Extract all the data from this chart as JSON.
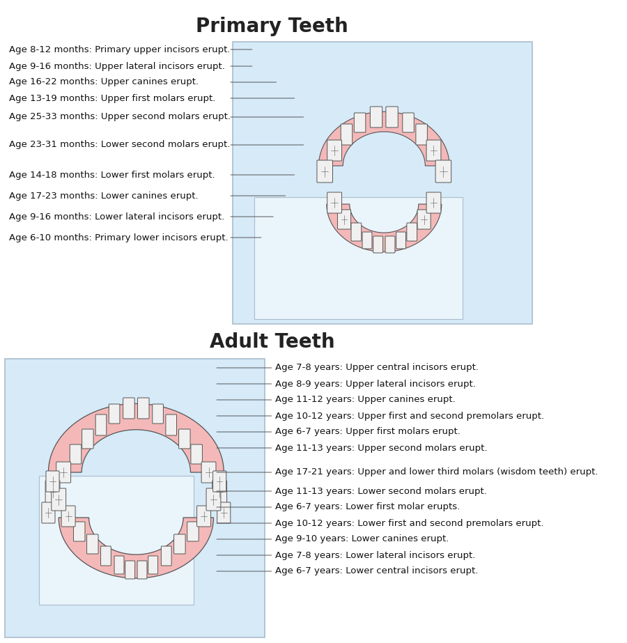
{
  "title_primary": "Primary Teeth",
  "title_adult": "Adult Teeth",
  "bg_color": "#ffffff",
  "box_bg": "#d6eaf8",
  "inner_box_bg": "#eaf4fb",
  "box_border": "#aabccc",
  "primary_labels": [
    "Age 8-12 months: Primary upper incisors erupt.",
    "Age 9-16 months: Upper lateral incisors erupt.",
    "Age 16-22 months: Upper canines erupt.",
    "Age 13-19 months: Upper first molars erupt.",
    "Age 25-33 months: Upper second molars erupt.",
    "Age 23-31 months: Lower second molars erupt.",
    "Age 14-18 months: Lower first molars erupt.",
    "Age 17-23 months: Lower canines erupt.",
    "Age 9-16 months: Lower lateral incisors erupt.",
    "Age 6-10 months: Primary lower incisors erupt."
  ],
  "adult_labels": [
    "Age 7-8 years: Upper central incisors erupt.",
    "Age 8-9 years: Upper lateral incisors erupt.",
    "Age 11-12 years: Upper canines erupt.",
    "Age 10-12 years: Upper first and second premolars erupt.",
    "Age 6-7 years: Upper first molars erupt.",
    "Age 11-13 years: Upper second molars erupt.",
    "Age 17-21 years: Upper and lower third molars (wisdom teeth) erupt.",
    "Age 11-13 years: Lower second molars erupt.",
    "Age 6-7 years: Lower first molar erupts.",
    "Age 10-12 years: Lower first and second premolars erupt.",
    "Age 9-10 years: Lower canines erupt.",
    "Age 7-8 years: Lower lateral incisors erupt.",
    "Age 6-7 years: Lower central incisors erupt."
  ],
  "pink_gum": "#f4b8b8",
  "tooth_fill": "#f0f0f0",
  "tooth_stroke": "#555555",
  "title_fontsize": 20,
  "label_fontsize": 9.5
}
